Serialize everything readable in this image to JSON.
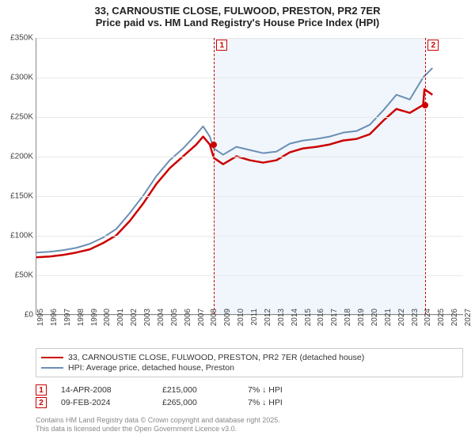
{
  "title": {
    "line1": "33, CARNOUSTIE CLOSE, FULWOOD, PRESTON, PR2 7ER",
    "line2": "Price paid vs. HM Land Registry's House Price Index (HPI)"
  },
  "chart": {
    "type": "line",
    "background_color": "#ffffff",
    "highlight_band_color": "#e6f0f8",
    "grid_color": "#e8e8e8",
    "axis_color": "#888888",
    "x": {
      "years": [
        1995,
        1996,
        1997,
        1998,
        1999,
        2000,
        2001,
        2002,
        2003,
        2004,
        2005,
        2006,
        2007,
        2008,
        2009,
        2010,
        2011,
        2012,
        2013,
        2014,
        2015,
        2016,
        2017,
        2018,
        2019,
        2020,
        2021,
        2022,
        2023,
        2024,
        2025,
        2026,
        2027
      ],
      "tick_fontsize": 10,
      "tick_rotation_deg": -90
    },
    "y": {
      "min": 0,
      "max": 350000,
      "step": 50000,
      "tick_labels": [
        "£0",
        "£50K",
        "£100K",
        "£150K",
        "£200K",
        "£250K",
        "£300K",
        "£350K"
      ],
      "tick_fontsize": 10
    },
    "series": [
      {
        "id": "price_paid",
        "label": "33, CARNOUSTIE CLOSE, FULWOOD, PRESTON, PR2 7ER (detached house)",
        "color": "#cc0000",
        "line_width": 2.5,
        "x": [
          1995,
          1996,
          1997,
          1998,
          1999,
          2000,
          2001,
          2002,
          2003,
          2004,
          2005,
          2006,
          2007,
          2007.5,
          2008,
          2008.3,
          2009,
          2010,
          2011,
          2012,
          2013,
          2014,
          2015,
          2016,
          2017,
          2018,
          2019,
          2020,
          2021,
          2022,
          2023,
          2024,
          2024.1,
          2024.7
        ],
        "y": [
          72000,
          73000,
          75000,
          78000,
          82000,
          90000,
          100000,
          118000,
          140000,
          165000,
          185000,
          200000,
          215000,
          225000,
          215000,
          198000,
          190000,
          200000,
          195000,
          192000,
          195000,
          205000,
          210000,
          212000,
          215000,
          220000,
          222000,
          228000,
          245000,
          260000,
          255000,
          265000,
          285000,
          278000
        ]
      },
      {
        "id": "hpi",
        "label": "HPI: Average price, detached house, Preston",
        "color": "#6b8fb5",
        "line_width": 2,
        "x": [
          1995,
          1996,
          1997,
          1998,
          1999,
          2000,
          2001,
          2002,
          2003,
          2004,
          2005,
          2006,
          2007,
          2007.5,
          2008,
          2008.3,
          2009,
          2010,
          2011,
          2012,
          2013,
          2014,
          2015,
          2016,
          2017,
          2018,
          2019,
          2020,
          2021,
          2022,
          2023,
          2024,
          2024.7
        ],
        "y": [
          78000,
          79000,
          81000,
          84000,
          89000,
          97000,
          108000,
          128000,
          150000,
          175000,
          195000,
          210000,
          228000,
          238000,
          225000,
          210000,
          202000,
          212000,
          208000,
          204000,
          206000,
          216000,
          220000,
          222000,
          225000,
          230000,
          232000,
          240000,
          258000,
          278000,
          272000,
          300000,
          312000
        ]
      }
    ],
    "markers": [
      {
        "id": 1,
        "label": "1",
        "x_year": 2008.29,
        "y_value": 215000
      },
      {
        "id": 2,
        "label": "2",
        "x_year": 2024.11,
        "y_value": 265000
      }
    ],
    "highlight_band": {
      "x_from": 2008.29,
      "x_to": 2024.11
    }
  },
  "legend": {
    "items": [
      {
        "color": "#cc0000",
        "label": "33, CARNOUSTIE CLOSE, FULWOOD, PRESTON, PR2 7ER (detached house)"
      },
      {
        "color": "#6b8fb5",
        "label": "HPI: Average price, detached house, Preston"
      }
    ]
  },
  "markers_table": {
    "rows": [
      {
        "badge": "1",
        "date": "14-APR-2008",
        "price": "£215,000",
        "delta": "7% ↓ HPI"
      },
      {
        "badge": "2",
        "date": "09-FEB-2024",
        "price": "£265,000",
        "delta": "7% ↓ HPI"
      }
    ]
  },
  "copyright": {
    "line1": "Contains HM Land Registry data © Crown copyright and database right 2025.",
    "line2": "This data is licensed under the Open Government Licence v3.0."
  }
}
